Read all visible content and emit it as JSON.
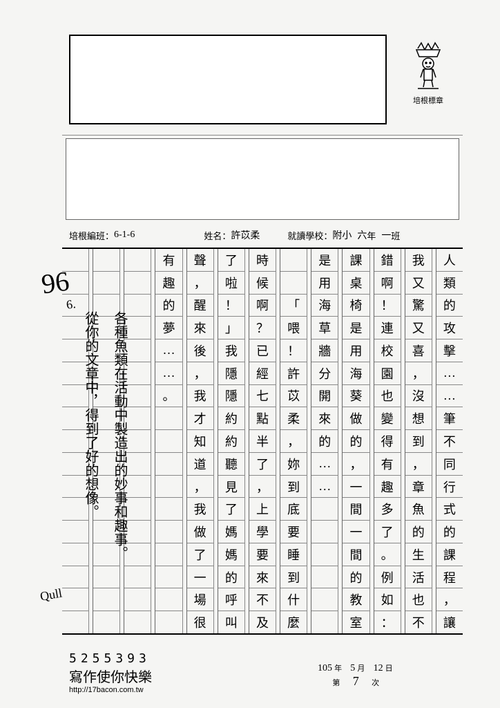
{
  "mascot_label": "培根標章",
  "meta": {
    "class_label": "培根編班：",
    "class_value": "6-1-6",
    "name_label": "姓名：",
    "name_value": "許苡柔",
    "school_label": "就讀學校：",
    "school_value": "附小",
    "grade_label": "年",
    "grade_value": "六",
    "ban_label": "班",
    "ban_value": "一"
  },
  "columns": [
    [
      "人",
      "類",
      "的",
      "攻",
      "擊",
      "…",
      "…",
      "筆",
      "不",
      "同",
      "行",
      "式",
      "的",
      "課",
      "程",
      "，",
      "讓"
    ],
    [
      "我",
      "又",
      "驚",
      "又",
      "喜",
      "，",
      "沒",
      "想",
      "到",
      "，",
      "章",
      "魚",
      "的",
      "生",
      "活",
      "也",
      "不"
    ],
    [
      "錯",
      "啊",
      "！",
      "連",
      "校",
      "園",
      "也",
      "變",
      "得",
      "有",
      "趣",
      "多",
      "了",
      "。",
      "例",
      "如",
      "："
    ],
    [
      "課",
      "桌",
      "椅",
      "是",
      "用",
      "海",
      "葵",
      "做",
      "的",
      "，",
      "一",
      "間",
      "一",
      "間",
      "的",
      "教",
      "室"
    ],
    [
      "是",
      "用",
      "海",
      "草",
      "牆",
      "分",
      "開",
      "來",
      "的",
      "…",
      "…",
      "",
      "",
      "",
      "",
      "",
      ""
    ],
    [
      "",
      "",
      "「",
      "喂",
      "！",
      "許",
      "苡",
      "柔",
      "，",
      "妳",
      "到",
      "底",
      "要",
      "睡",
      "到",
      "什",
      "麼"
    ],
    [
      "時",
      "候",
      "啊",
      "？",
      "已",
      "經",
      "七",
      "點",
      "半",
      "了",
      "，",
      "上",
      "學",
      "要",
      "來",
      "不",
      "及"
    ],
    [
      "了",
      "啦",
      "！",
      "」",
      "我",
      "隱",
      "隱",
      "約",
      "約",
      "聽",
      "見",
      "了",
      "媽",
      "媽",
      "的",
      "呼",
      "叫"
    ],
    [
      "聲",
      "，",
      "醒",
      "來",
      "後",
      "，",
      "我",
      "才",
      "知",
      "道",
      "，",
      "我",
      "做",
      "了",
      "一",
      "場",
      "很"
    ],
    [
      "有",
      "趣",
      "的",
      "夢",
      "…",
      "…",
      "。",
      "",
      "",
      "",
      "",
      "",
      "",
      "",
      "",
      "",
      ""
    ],
    [
      "",
      "",
      "",
      "",
      "",
      "",
      "",
      "",
      "",
      "",
      "",
      "",
      "",
      "",
      "",
      "",
      ""
    ],
    [
      "",
      "",
      "",
      "",
      "",
      "",
      "",
      "",
      "",
      "",
      "",
      "",
      "",
      "",
      "",
      "",
      ""
    ],
    [
      "",
      "",
      "",
      "",
      "",
      "",
      "",
      "",
      "",
      "",
      "",
      "",
      "",
      "",
      "",
      "",
      ""
    ]
  ],
  "teacher_comments": {
    "grade": "96",
    "line1": "各種魚類在活動中製造出的妙事和趣事。",
    "line2": "從你的文章中，得到了好的想像。",
    "margin": "Qull",
    "six": "6."
  },
  "footer": {
    "number": "5255393",
    "slogan": "寫作使你快樂",
    "url": "http://17bacon.com.tw"
  },
  "date": {
    "roc_year": "105",
    "year_label": "年",
    "month": "5",
    "month_label": "月",
    "day": "12",
    "day_label": "日",
    "ci_label": "次",
    "ci": "7",
    "di": "第"
  }
}
